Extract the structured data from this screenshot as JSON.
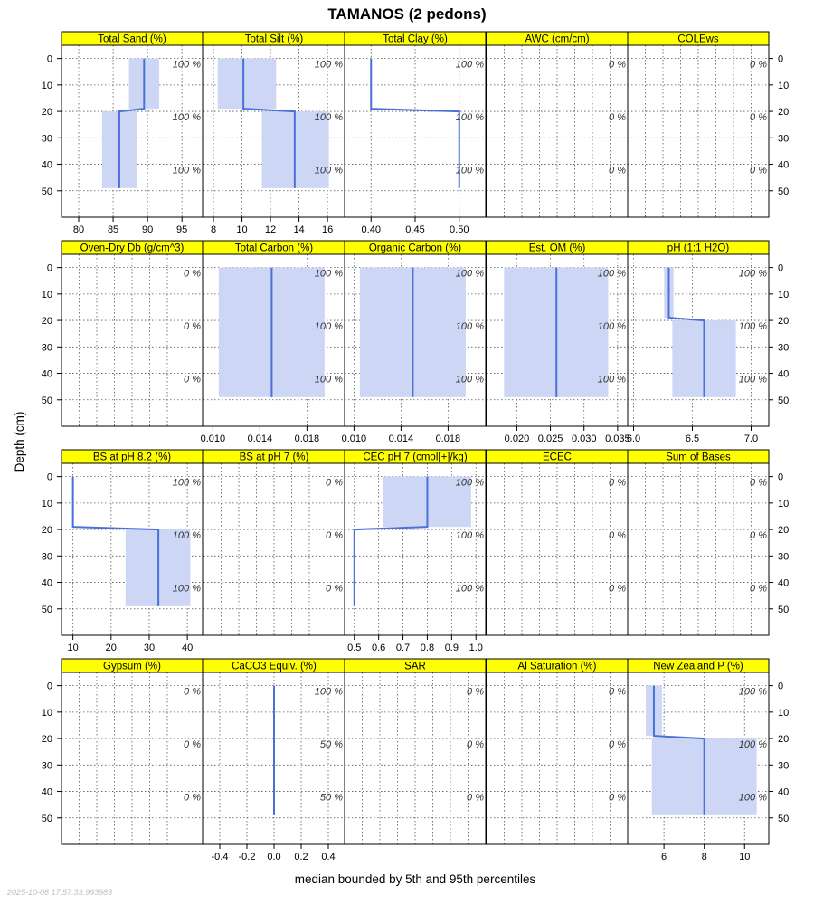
{
  "title": "TAMANOS (2 pedons)",
  "ylabel": "Depth (cm)",
  "xlabel": "median bounded by 5th and 95th percentiles",
  "timestamp": "2025-10-08 17:57:33.993983",
  "colors": {
    "strip": "#ffff00",
    "band": "#cdd6f4",
    "line": "#4a70d9",
    "grid": "#555555"
  },
  "y_ticks": [
    "0",
    "10",
    "20",
    "30",
    "40",
    "50"
  ],
  "chart_data": {
    "type": "line",
    "ylim": [
      60,
      -5
    ],
    "y_ticks": [
      0,
      10,
      20,
      30,
      40,
      50
    ],
    "grid": true,
    "panels": [
      {
        "name": "Total Sand (%)",
        "row": 0,
        "col": 0,
        "xlim": [
          77.5,
          98
        ],
        "x_ticks": [
          80,
          85,
          90,
          95
        ],
        "x_tick_labels": [
          "80",
          "85",
          "90",
          "95"
        ],
        "segments": [
          {
            "top": 0,
            "bottom": 19,
            "median": 89.5,
            "p5": 87.3,
            "p95": 91.7
          },
          {
            "top": 20,
            "bottom": 49,
            "median": 85.9,
            "p5": 83.4,
            "p95": 88.4
          }
        ],
        "pct_labels": [
          "100 %",
          "100 %",
          "100 %"
        ]
      },
      {
        "name": "Total Silt (%)",
        "row": 0,
        "col": 1,
        "xlim": [
          7.3,
          17.2
        ],
        "x_ticks": [
          8,
          10,
          12,
          14,
          16
        ],
        "x_tick_labels": [
          "8",
          "10",
          "12",
          "14",
          "16"
        ],
        "segments": [
          {
            "top": 0,
            "bottom": 19,
            "median": 10.1,
            "p5": 8.3,
            "p95": 12.4
          },
          {
            "top": 20,
            "bottom": 49,
            "median": 13.7,
            "p5": 11.4,
            "p95": 16.1
          }
        ],
        "pct_labels": [
          "100 %",
          "100 %",
          "100 %"
        ]
      },
      {
        "name": "Total Clay (%)",
        "row": 0,
        "col": 2,
        "xlim": [
          0.37,
          0.53
        ],
        "x_ticks": [
          0.4,
          0.45,
          0.5
        ],
        "x_tick_labels": [
          "0.40",
          "0.45",
          "0.50"
        ],
        "segments": [
          {
            "top": 0,
            "bottom": 19,
            "median": 0.4,
            "p5": 0.4,
            "p95": 0.4
          },
          {
            "top": 20,
            "bottom": 49,
            "median": 0.5,
            "p5": 0.5,
            "p95": 0.5
          }
        ],
        "pct_labels": [
          "100 %",
          "100 %",
          "100 %"
        ]
      },
      {
        "name": "AWC (cm/cm)",
        "row": 0,
        "col": 3,
        "xlim": [
          0,
          1
        ],
        "x_ticks": [],
        "x_tick_labels": [],
        "segments": [],
        "pct_labels": [
          "0 %",
          "0 %",
          "0 %"
        ]
      },
      {
        "name": "COLEws",
        "row": 0,
        "col": 4,
        "xlim": [
          0,
          1
        ],
        "x_ticks": [],
        "x_tick_labels": [],
        "segments": [],
        "pct_labels": [
          "0 %",
          "0 %",
          "0 %"
        ]
      },
      {
        "name": "Oven-Dry Db (g/cm^3)",
        "row": 1,
        "col": 0,
        "xlim": [
          0,
          1
        ],
        "x_ticks": [],
        "x_tick_labels": [],
        "segments": [],
        "pct_labels": [
          "0 %",
          "0 %",
          "0 %"
        ]
      },
      {
        "name": "Total Carbon (%)",
        "row": 1,
        "col": 1,
        "xlim": [
          0.0092,
          0.0212
        ],
        "x_ticks": [
          0.01,
          0.014,
          0.018
        ],
        "x_tick_labels": [
          "0.010",
          "0.014",
          "0.018"
        ],
        "segments": [
          {
            "top": 0,
            "bottom": 49,
            "median": 0.015,
            "p5": 0.0105,
            "p95": 0.0195
          }
        ],
        "pct_labels": [
          "100 %",
          "100 %",
          "100 %"
        ]
      },
      {
        "name": "Organic Carbon (%)",
        "row": 1,
        "col": 2,
        "xlim": [
          0.0092,
          0.0212
        ],
        "x_ticks": [
          0.01,
          0.014,
          0.018
        ],
        "x_tick_labels": [
          "0.010",
          "0.014",
          "0.018"
        ],
        "segments": [
          {
            "top": 0,
            "bottom": 49,
            "median": 0.015,
            "p5": 0.0105,
            "p95": 0.0195
          }
        ],
        "pct_labels": [
          "100 %",
          "100 %",
          "100 %"
        ]
      },
      {
        "name": "Est. OM (%)",
        "row": 1,
        "col": 3,
        "xlim": [
          0.0155,
          0.0365
        ],
        "x_ticks": [
          0.02,
          0.025,
          0.03,
          0.035
        ],
        "x_tick_labels": [
          "0.020",
          "0.025",
          "0.030",
          "0.035"
        ],
        "segments": [
          {
            "top": 0,
            "bottom": 49,
            "median": 0.0259,
            "p5": 0.0181,
            "p95": 0.0336
          }
        ],
        "pct_labels": [
          "100 %",
          "100 %",
          "100 %"
        ]
      },
      {
        "name": "pH (1:1 H2O)",
        "row": 1,
        "col": 4,
        "xlim": [
          5.95,
          7.15
        ],
        "x_ticks": [
          6.0,
          6.5,
          7.0
        ],
        "x_tick_labels": [
          "6.0",
          "6.5",
          "7.0"
        ],
        "segments": [
          {
            "top": 0,
            "bottom": 19,
            "median": 6.3,
            "p5": 6.26,
            "p95": 6.34
          },
          {
            "top": 20,
            "bottom": 49,
            "median": 6.6,
            "p5": 6.33,
            "p95": 6.87
          }
        ],
        "pct_labels": [
          "100 %",
          "100 %",
          "100 %"
        ]
      },
      {
        "name": "BS at pH 8.2 (%)",
        "row": 2,
        "col": 0,
        "xlim": [
          7,
          44
        ],
        "x_ticks": [
          10,
          20,
          30,
          40
        ],
        "x_tick_labels": [
          "10",
          "20",
          "30",
          "40"
        ],
        "segments": [
          {
            "top": 0,
            "bottom": 19,
            "median": 10.0,
            "p5": 10.0,
            "p95": 10.0
          },
          {
            "top": 20,
            "bottom": 49,
            "median": 32.4,
            "p5": 23.8,
            "p95": 40.8
          }
        ],
        "pct_labels": [
          "100 %",
          "100 %",
          "100 %"
        ]
      },
      {
        "name": "BS at pH 7 (%)",
        "row": 2,
        "col": 1,
        "xlim": [
          0,
          1
        ],
        "x_ticks": [],
        "x_tick_labels": [],
        "segments": [],
        "pct_labels": [
          "0 %",
          "0 %",
          "0 %"
        ]
      },
      {
        "name": "CEC pH 7 (cmol[+]/kg)",
        "row": 2,
        "col": 2,
        "xlim": [
          0.46,
          1.04
        ],
        "x_ticks": [
          0.5,
          0.6,
          0.7,
          0.8,
          0.9,
          1.0
        ],
        "x_tick_labels": [
          "0.5",
          "0.6",
          "0.7",
          "0.8",
          "0.9",
          "1.0"
        ],
        "segments": [
          {
            "top": 0,
            "bottom": 19,
            "median": 0.8,
            "p5": 0.62,
            "p95": 0.98
          },
          {
            "top": 20,
            "bottom": 49,
            "median": 0.5,
            "p5": 0.5,
            "p95": 0.5
          }
        ],
        "pct_labels": [
          "100 %",
          "100 %",
          "100 %"
        ]
      },
      {
        "name": "ECEC",
        "row": 2,
        "col": 3,
        "xlim": [
          0,
          1
        ],
        "x_ticks": [],
        "x_tick_labels": [],
        "segments": [],
        "pct_labels": [
          "0 %",
          "0 %",
          "0 %"
        ]
      },
      {
        "name": "Sum of Bases",
        "row": 2,
        "col": 4,
        "xlim": [
          0,
          1
        ],
        "x_ticks": [],
        "x_tick_labels": [],
        "segments": [],
        "pct_labels": [
          "0 %",
          "0 %",
          "0 %"
        ]
      },
      {
        "name": "Gypsum (%)",
        "row": 3,
        "col": 0,
        "xlim": [
          0,
          1
        ],
        "x_ticks": [],
        "x_tick_labels": [],
        "segments": [],
        "pct_labels": [
          "0 %",
          "0 %",
          "0 %"
        ]
      },
      {
        "name": "CaCO3 Equiv. (%)",
        "row": 3,
        "col": 1,
        "xlim": [
          -0.52,
          0.52
        ],
        "x_ticks": [
          -0.4,
          -0.2,
          0.0,
          0.2,
          0.4
        ],
        "x_tick_labels": [
          "-0.4",
          "-0.2",
          "0.0",
          "0.2",
          "0.4"
        ],
        "segments": [
          {
            "top": 0,
            "bottom": 49,
            "median": 0.0,
            "p5": 0.0,
            "p95": 0.0
          }
        ],
        "pct_labels": [
          "100 %",
          "50 %",
          "50 %"
        ]
      },
      {
        "name": "SAR",
        "row": 3,
        "col": 2,
        "xlim": [
          0,
          1
        ],
        "x_ticks": [],
        "x_tick_labels": [],
        "segments": [],
        "pct_labels": [
          "0 %",
          "0 %",
          "0 %"
        ]
      },
      {
        "name": "Al Saturation (%)",
        "row": 3,
        "col": 3,
        "xlim": [
          0,
          1
        ],
        "x_ticks": [],
        "x_tick_labels": [],
        "segments": [],
        "pct_labels": [
          "0 %",
          "0 %",
          "0 %"
        ]
      },
      {
        "name": "New Zealand P (%)",
        "row": 3,
        "col": 4,
        "xlim": [
          4.2,
          11.2
        ],
        "x_ticks": [
          6,
          8,
          10
        ],
        "x_tick_labels": [
          "6",
          "8",
          "10"
        ],
        "segments": [
          {
            "top": 0,
            "bottom": 19,
            "median": 5.5,
            "p5": 5.1,
            "p95": 5.9
          },
          {
            "top": 20,
            "bottom": 49,
            "median": 8.0,
            "p5": 5.4,
            "p95": 10.6
          }
        ],
        "pct_labels": [
          "100 %",
          "100 %",
          "100 %"
        ]
      }
    ]
  }
}
